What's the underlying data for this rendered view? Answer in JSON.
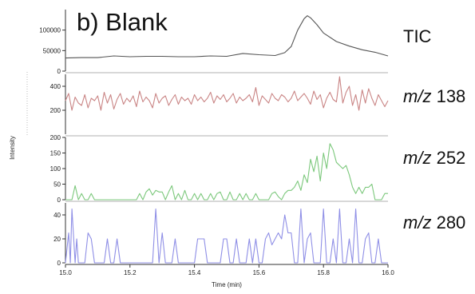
{
  "panel_title": "b) Blank",
  "colors": {
    "tic": "#555555",
    "mz138": "#c98484",
    "mz252": "#7cc87c",
    "mz280": "#8f8fe6",
    "axis": "#333333",
    "divider": "#999999"
  },
  "chart_data": [
    {
      "type": "line",
      "label": "TIC",
      "x": [
        15.0,
        15.05,
        15.1,
        15.15,
        15.2,
        15.25,
        15.3,
        15.35,
        15.4,
        15.45,
        15.5,
        15.55,
        15.6,
        15.65,
        15.68,
        15.7,
        15.72,
        15.74,
        15.75,
        15.76,
        15.78,
        15.8,
        15.84,
        15.88,
        15.92,
        15.96,
        16.0
      ],
      "y": [
        32000,
        33000,
        33000,
        37000,
        35000,
        36000,
        36000,
        35000,
        35000,
        37000,
        36000,
        43000,
        40000,
        38000,
        45000,
        60000,
        100000,
        128000,
        135000,
        130000,
        113000,
        93000,
        72000,
        61000,
        52000,
        46000,
        37000
      ],
      "ylim": [
        0,
        150000
      ],
      "yticks": [
        "0",
        "50000",
        "100000"
      ],
      "ytick_values": [
        0,
        50000,
        100000
      ]
    },
    {
      "type": "line",
      "label_mz": "m/z",
      "label_num": "138",
      "x": [
        15.0,
        15.01,
        15.02,
        15.03,
        15.04,
        15.05,
        15.06,
        15.07,
        15.08,
        15.09,
        15.1,
        15.11,
        15.12,
        15.13,
        15.14,
        15.15,
        15.16,
        15.17,
        15.18,
        15.19,
        15.2,
        15.21,
        15.22,
        15.23,
        15.24,
        15.25,
        15.26,
        15.27,
        15.28,
        15.29,
        15.3,
        15.31,
        15.32,
        15.33,
        15.34,
        15.35,
        15.36,
        15.37,
        15.38,
        15.39,
        15.4,
        15.41,
        15.42,
        15.43,
        15.44,
        15.45,
        15.46,
        15.47,
        15.48,
        15.49,
        15.5,
        15.51,
        15.52,
        15.53,
        15.54,
        15.55,
        15.56,
        15.57,
        15.58,
        15.59,
        15.6,
        15.61,
        15.62,
        15.63,
        15.64,
        15.65,
        15.66,
        15.67,
        15.68,
        15.69,
        15.7,
        15.71,
        15.72,
        15.73,
        15.74,
        15.75,
        15.76,
        15.77,
        15.78,
        15.79,
        15.8,
        15.81,
        15.82,
        15.83,
        15.84,
        15.85,
        15.86,
        15.87,
        15.88,
        15.89,
        15.9,
        15.91,
        15.92,
        15.93,
        15.94,
        15.95,
        15.96,
        15.97,
        15.98,
        15.99,
        16.0
      ],
      "y": [
        280,
        340,
        200,
        310,
        260,
        240,
        330,
        220,
        300,
        280,
        320,
        200,
        350,
        260,
        330,
        210,
        290,
        340,
        250,
        300,
        270,
        320,
        230,
        360,
        270,
        310,
        280,
        220,
        340,
        260,
        300,
        320,
        240,
        290,
        330,
        250,
        310,
        280,
        300,
        250,
        330,
        280,
        310,
        270,
        300,
        350,
        260,
        320,
        290,
        330,
        270,
        300,
        340,
        260,
        310,
        280,
        300,
        330,
        270,
        390,
        240,
        320,
        290,
        260,
        340,
        300,
        280,
        330,
        310,
        270,
        300,
        360,
        280,
        310,
        340,
        300,
        250,
        360,
        290,
        330,
        220,
        300,
        350,
        290,
        270,
        480,
        260,
        350,
        400,
        240,
        330,
        200,
        370,
        260,
        380,
        300,
        240,
        330,
        280,
        230,
        280
      ],
      "ylim": [
        0,
        500
      ],
      "yticks": [
        "200",
        "400"
      ],
      "ytick_values": [
        200,
        400
      ]
    },
    {
      "type": "line",
      "label_mz": "m/z",
      "label_num": "252",
      "x": [
        15.0,
        15.01,
        15.02,
        15.03,
        15.04,
        15.05,
        15.06,
        15.07,
        15.08,
        15.09,
        15.1,
        15.11,
        15.12,
        15.13,
        15.14,
        15.15,
        15.16,
        15.17,
        15.18,
        15.19,
        15.2,
        15.21,
        15.22,
        15.23,
        15.24,
        15.25,
        15.26,
        15.27,
        15.28,
        15.29,
        15.3,
        15.31,
        15.32,
        15.33,
        15.34,
        15.35,
        15.36,
        15.37,
        15.38,
        15.39,
        15.4,
        15.41,
        15.42,
        15.43,
        15.44,
        15.45,
        15.46,
        15.47,
        15.48,
        15.49,
        15.5,
        15.51,
        15.52,
        15.53,
        15.54,
        15.55,
        15.56,
        15.57,
        15.58,
        15.59,
        15.6,
        15.61,
        15.62,
        15.63,
        15.64,
        15.65,
        15.66,
        15.67,
        15.68,
        15.69,
        15.7,
        15.71,
        15.72,
        15.73,
        15.74,
        15.75,
        15.76,
        15.77,
        15.78,
        15.79,
        15.8,
        15.81,
        15.82,
        15.83,
        15.84,
        15.85,
        15.86,
        15.87,
        15.88,
        15.89,
        15.9,
        15.91,
        15.92,
        15.93,
        15.94,
        15.95,
        15.96,
        15.97,
        15.98,
        15.99,
        16.0
      ],
      "y": [
        0,
        0,
        0,
        45,
        0,
        20,
        0,
        0,
        20,
        0,
        0,
        0,
        0,
        0,
        0,
        0,
        0,
        0,
        0,
        0,
        0,
        0,
        0,
        20,
        0,
        25,
        35,
        15,
        30,
        25,
        25,
        0,
        25,
        45,
        0,
        20,
        0,
        30,
        0,
        0,
        20,
        0,
        20,
        0,
        0,
        20,
        0,
        20,
        25,
        0,
        0,
        25,
        0,
        0,
        20,
        0,
        20,
        0,
        0,
        20,
        0,
        0,
        0,
        0,
        20,
        25,
        10,
        0,
        20,
        30,
        30,
        40,
        60,
        30,
        80,
        55,
        130,
        90,
        140,
        60,
        150,
        100,
        180,
        160,
        120,
        110,
        100,
        110,
        80,
        40,
        20,
        40,
        20,
        40,
        40,
        50,
        0,
        0,
        0,
        20,
        20
      ],
      "ylim": [
        0,
        200
      ],
      "yticks": [
        "0",
        "50",
        "100",
        "150",
        "200"
      ],
      "ytick_values": [
        0,
        50,
        100,
        150,
        200
      ]
    },
    {
      "type": "line",
      "label_mz": "m/z",
      "label_num": "280",
      "x": [
        15.0,
        15.01,
        15.015,
        15.02,
        15.03,
        15.035,
        15.04,
        15.05,
        15.06,
        15.07,
        15.08,
        15.09,
        15.1,
        15.11,
        15.12,
        15.13,
        15.14,
        15.15,
        15.16,
        15.17,
        15.18,
        15.19,
        15.2,
        15.21,
        15.22,
        15.23,
        15.24,
        15.25,
        15.26,
        15.27,
        15.28,
        15.29,
        15.3,
        15.31,
        15.32,
        15.33,
        15.34,
        15.35,
        15.36,
        15.37,
        15.38,
        15.39,
        15.4,
        15.41,
        15.42,
        15.43,
        15.44,
        15.45,
        15.46,
        15.47,
        15.48,
        15.49,
        15.5,
        15.51,
        15.52,
        15.53,
        15.54,
        15.55,
        15.56,
        15.57,
        15.58,
        15.59,
        15.6,
        15.61,
        15.62,
        15.63,
        15.64,
        15.65,
        15.66,
        15.67,
        15.68,
        15.69,
        15.7,
        15.71,
        15.72,
        15.73,
        15.74,
        15.75,
        15.76,
        15.77,
        15.78,
        15.79,
        15.8,
        15.81,
        15.82,
        15.83,
        15.84,
        15.85,
        15.86,
        15.87,
        15.88,
        15.89,
        15.9,
        15.91,
        15.92,
        15.93,
        15.94,
        15.95,
        15.96,
        15.97,
        15.98,
        15.99,
        16.0
      ],
      "y": [
        0,
        25,
        0,
        45,
        0,
        20,
        0,
        0,
        0,
        25,
        20,
        0,
        0,
        0,
        0,
        20,
        0,
        0,
        20,
        0,
        0,
        0,
        0,
        0,
        0,
        0,
        0,
        0,
        0,
        0,
        45,
        0,
        25,
        0,
        0,
        0,
        20,
        0,
        0,
        0,
        0,
        0,
        0,
        20,
        20,
        20,
        0,
        0,
        0,
        0,
        0,
        20,
        20,
        0,
        0,
        20,
        0,
        0,
        0,
        20,
        0,
        20,
        0,
        0,
        20,
        25,
        15,
        20,
        25,
        20,
        40,
        25,
        25,
        0,
        0,
        45,
        0,
        20,
        25,
        0,
        0,
        0,
        45,
        0,
        0,
        20,
        0,
        45,
        0,
        0,
        20,
        0,
        45,
        0,
        0,
        20,
        25,
        0,
        0,
        20,
        0,
        0,
        0
      ],
      "ylim": [
        0,
        50
      ],
      "yticks": [
        "0",
        "20",
        "40"
      ],
      "ytick_values": [
        0,
        20,
        40
      ]
    }
  ],
  "shared_x": {
    "xlim": [
      15.0,
      16.0
    ],
    "xticks": [
      "15.0",
      "15.2",
      "15.4",
      "15.6",
      "15.8",
      "16.0"
    ],
    "xtick_values": [
      15.0,
      15.2,
      15.4,
      15.6,
      15.8,
      16.0
    ],
    "xlabel": "Time (min)"
  },
  "ylabel": "Intensity",
  "labels": {
    "tic": "TIC"
  }
}
